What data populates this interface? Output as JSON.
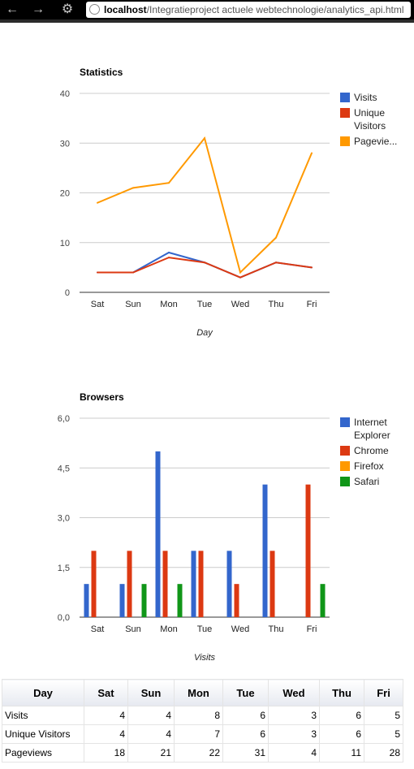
{
  "browser": {
    "url_host": "localhost",
    "url_path": "/Integratieproject actuele webtechnologie/analytics_api.html",
    "back_icon": "arrow-left-icon",
    "forward_icon": "arrow-right-icon",
    "tool_icon": "wrench-icon"
  },
  "chart_data": [
    {
      "type": "line",
      "title": "Statistics",
      "xlabel": "Day",
      "ylabel": "",
      "categories": [
        "Sat",
        "Sun",
        "Mon",
        "Tue",
        "Wed",
        "Thu",
        "Fri"
      ],
      "yticks": [
        "0",
        "10",
        "20",
        "30",
        "40"
      ],
      "ylim": [
        0,
        40
      ],
      "legend_position": "right",
      "series": [
        {
          "name": "Visits",
          "legend_lines": [
            "Visits"
          ],
          "color": "#3366cc",
          "values": [
            4,
            4,
            8,
            6,
            3,
            6,
            5
          ]
        },
        {
          "name": "Unique Visitors",
          "legend_lines": [
            "Unique",
            "Visitors"
          ],
          "color": "#dc3912",
          "values": [
            4,
            4,
            7,
            6,
            3,
            6,
            5
          ]
        },
        {
          "name": "Pageviews",
          "legend_lines": [
            "Pagevie..."
          ],
          "color": "#ff9900",
          "values": [
            18,
            21,
            22,
            31,
            4,
            11,
            28
          ]
        }
      ]
    },
    {
      "type": "bar",
      "title": "Browsers",
      "xlabel": "Visits",
      "ylabel": "",
      "categories": [
        "Sat",
        "Sun",
        "Mon",
        "Tue",
        "Wed",
        "Thu",
        "Fri"
      ],
      "yticks": [
        "0,0",
        "1,5",
        "3,0",
        "4,5",
        "6,0"
      ],
      "ylim": [
        0,
        6
      ],
      "legend_position": "right",
      "series": [
        {
          "name": "Internet Explorer",
          "legend_lines": [
            "Internet",
            "Explorer"
          ],
          "color": "#3366cc",
          "values": [
            1,
            1,
            5,
            2,
            2,
            4,
            0
          ]
        },
        {
          "name": "Chrome",
          "legend_lines": [
            "Chrome"
          ],
          "color": "#dc3912",
          "values": [
            2,
            2,
            2,
            2,
            1,
            2,
            4
          ]
        },
        {
          "name": "Firefox",
          "legend_lines": [
            "Firefox"
          ],
          "color": "#ff9900",
          "values": [
            0,
            0,
            0,
            0,
            0,
            0,
            0
          ]
        },
        {
          "name": "Safari",
          "legend_lines": [
            "Safari"
          ],
          "color": "#109618",
          "values": [
            0,
            1,
            1,
            0,
            0,
            0,
            1
          ]
        }
      ]
    }
  ],
  "table": {
    "headers": [
      "Day",
      "Sat",
      "Sun",
      "Mon",
      "Tue",
      "Wed",
      "Thu",
      "Fri"
    ],
    "rows": [
      {
        "label": "Visits",
        "values": [
          "4",
          "4",
          "8",
          "6",
          "3",
          "6",
          "5"
        ]
      },
      {
        "label": "Unique Visitors",
        "values": [
          "4",
          "4",
          "7",
          "6",
          "3",
          "6",
          "5"
        ]
      },
      {
        "label": "Pageviews",
        "values": [
          "18",
          "21",
          "22",
          "31",
          "4",
          "11",
          "28"
        ]
      }
    ]
  }
}
